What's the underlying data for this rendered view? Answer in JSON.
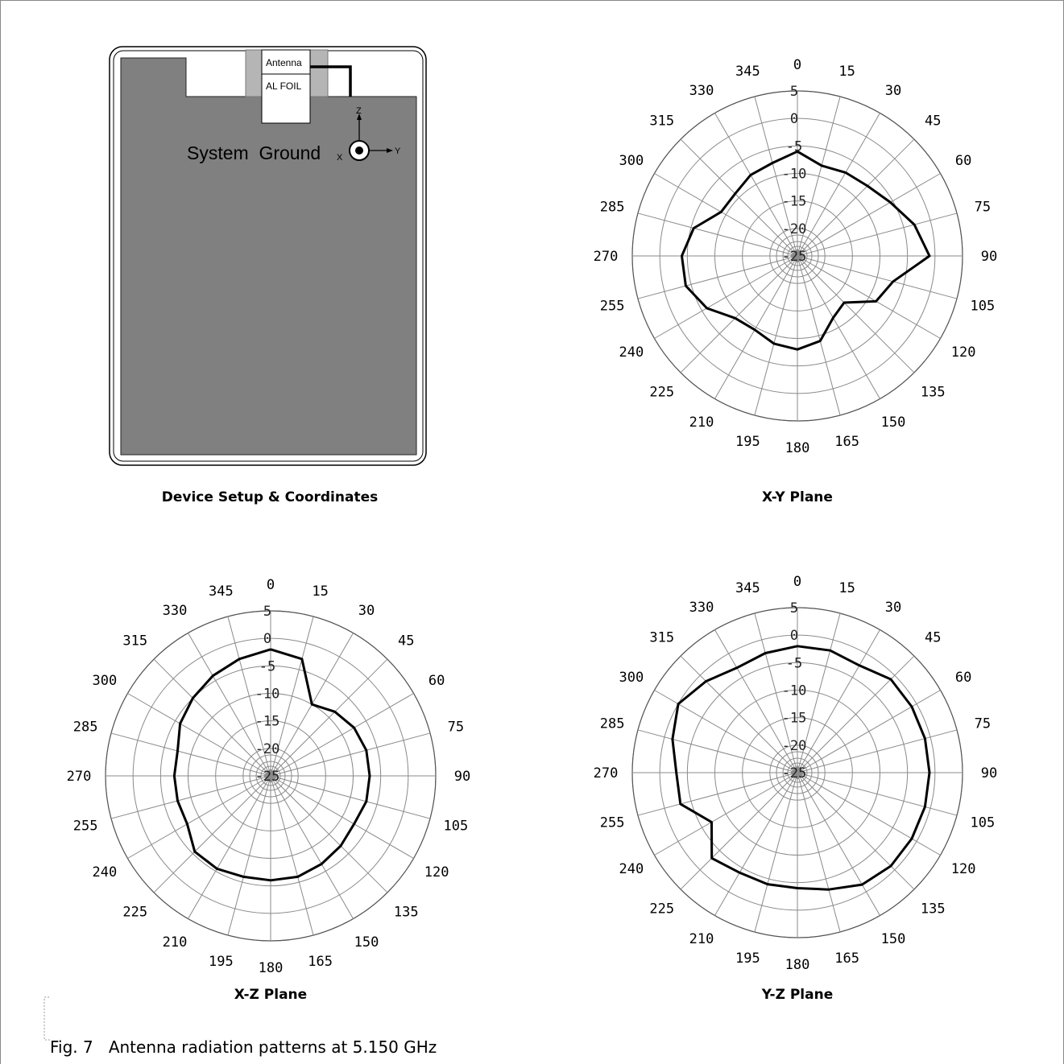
{
  "device": {
    "title": "Device Setup & Coordinates",
    "antenna_label": "Antenna",
    "foil_label": "AL FOIL",
    "ground_label": "System  Ground",
    "axes": {
      "z": "Z",
      "x": "X",
      "y": "Y"
    }
  },
  "polar_common": {
    "angle_labels": [
      "0",
      "15",
      "30",
      "45",
      "60",
      "75",
      "90",
      "105",
      "120",
      "135",
      "150",
      "165",
      "180",
      "195",
      "210",
      "225",
      "240",
      "255",
      "270",
      "285",
      "300",
      "315",
      "330",
      "345"
    ],
    "radial_labels": [
      "5",
      "0",
      "-5",
      "-10",
      "-15",
      "-20",
      "-25"
    ],
    "rlim": [
      -25,
      5
    ]
  },
  "chart_data": [
    {
      "type": "polar-line",
      "title": "X-Y Plane",
      "theta": [
        0,
        15,
        30,
        45,
        60,
        75,
        90,
        105,
        120,
        135,
        150,
        165,
        180,
        195,
        210,
        225,
        240,
        255,
        270,
        285,
        300,
        315,
        330,
        345
      ],
      "r": [
        -6,
        -8,
        -7.5,
        -7,
        -5.5,
        -3,
        -1,
        -7,
        -8.5,
        -13,
        -12,
        -9,
        -8,
        -8.5,
        -9.5,
        -9,
        -6,
        -4,
        -4,
        -5.5,
        -9,
        -9,
        -8,
        -7.5
      ]
    },
    {
      "type": "polar-line",
      "title": "X-Z Plane",
      "theta": [
        0,
        15,
        30,
        45,
        60,
        75,
        90,
        105,
        120,
        135,
        150,
        165,
        180,
        195,
        210,
        225,
        240,
        255,
        270,
        285,
        300,
        315,
        330,
        345
      ],
      "r": [
        -2,
        -3,
        -10,
        -8.5,
        -7.5,
        -7,
        -7,
        -7,
        -7.5,
        -7,
        -6.5,
        -6,
        -6,
        -6,
        -5.5,
        -5.5,
        -7.5,
        -7.5,
        -7.5,
        -7.5,
        -6,
        -5,
        -4,
        -3
      ]
    },
    {
      "type": "polar-line",
      "title": "Y-Z Plane",
      "theta": [
        0,
        15,
        30,
        45,
        60,
        75,
        90,
        105,
        120,
        135,
        150,
        165,
        180,
        195,
        210,
        225,
        240,
        255,
        270,
        285,
        300,
        315,
        330,
        345
      ],
      "r": [
        -2,
        -2,
        -2.5,
        -1,
        -1,
        -1,
        -1,
        -1,
        -1,
        -1,
        -1.5,
        -3,
        -4,
        -4,
        -4,
        -3,
        -7,
        -3,
        -3,
        -1.5,
        0,
        -1.5,
        -3,
        -2.5
      ]
    }
  ],
  "caption": "Fig. 7   Antenna radiation patterns at 5.150 GHz"
}
